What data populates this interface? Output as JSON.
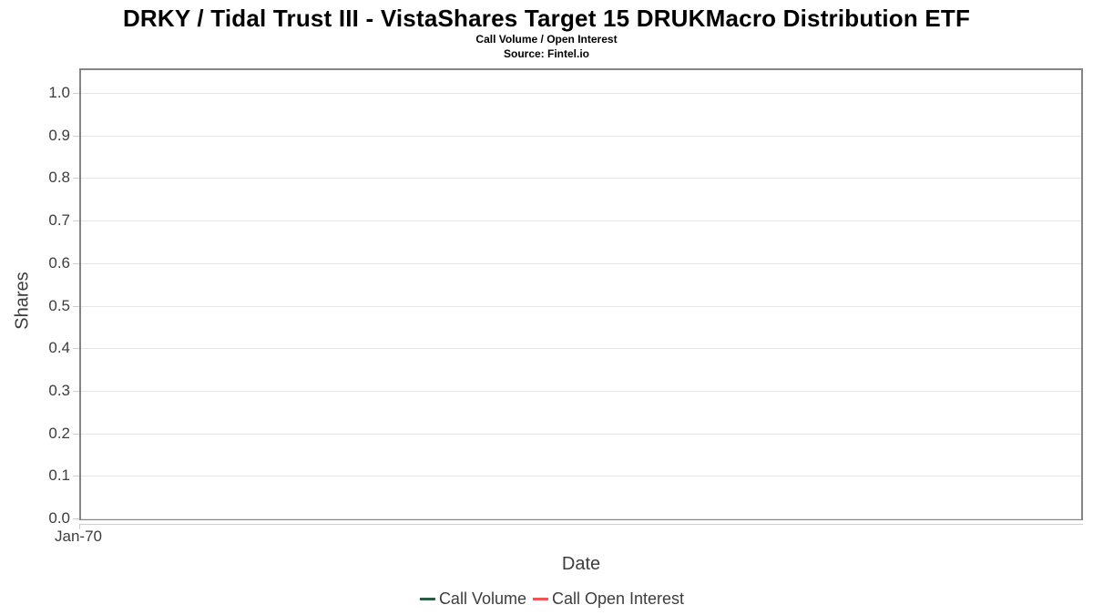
{
  "header": {
    "title": "DRKY / Tidal Trust III - VistaShares Target 15 DRUKMacro Distribution ETF",
    "subtitle": "Call Volume / Open Interest",
    "source": "Source: Fintel.io"
  },
  "chart_data": {
    "type": "line",
    "title": "DRKY / Tidal Trust III - VistaShares Target 15 DRUKMacro Distribution ETF",
    "subtitle": "Call Volume / Open Interest",
    "source": "Source: Fintel.io",
    "xlabel": "Date",
    "ylabel": "Shares",
    "x_ticks": [
      "Jan-70"
    ],
    "y_ticks": [
      0.0,
      0.1,
      0.2,
      0.3,
      0.4,
      0.5,
      0.6,
      0.7,
      0.8,
      0.9,
      1.0
    ],
    "ylim": [
      0.0,
      1.05
    ],
    "grid": true,
    "legend_position": "bottom-center",
    "series": [
      {
        "name": "Call Volume",
        "color": "#265c44",
        "x": [],
        "values": []
      },
      {
        "name": "Call Open Interest",
        "color": "#f05552",
        "x": [],
        "values": []
      }
    ]
  }
}
